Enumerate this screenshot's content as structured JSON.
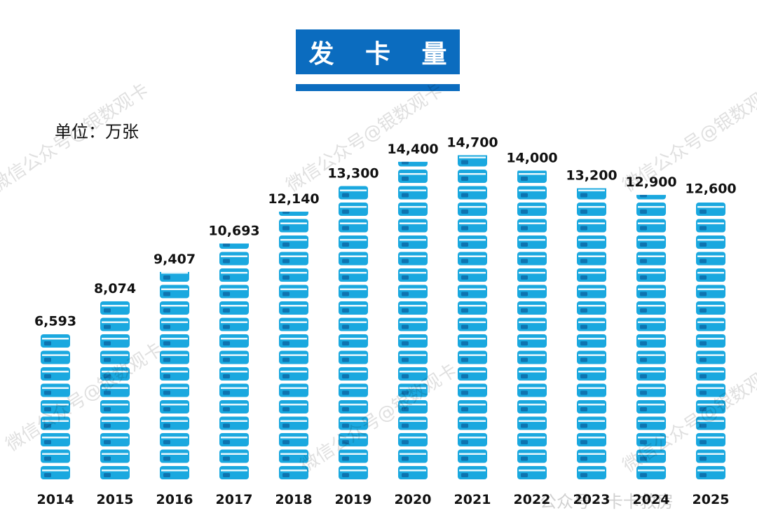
{
  "title": "发 卡 量",
  "unit_label": "单位：万张",
  "watermark": "微信公众号@银数观卡",
  "watermark_footer": "公众号 · 卡卡救房",
  "colors": {
    "title_bg": "#0b6cbf",
    "bar": "#1aa8df",
    "stripe": "#ffffff",
    "chip": "#0e74b0",
    "text": "#111111"
  },
  "chart_data": {
    "type": "bar",
    "title": "发 卡 量",
    "ylabel": "单位：万张",
    "xlabel": "",
    "categories": [
      "2014",
      "2015",
      "2016",
      "2017",
      "2018",
      "2019",
      "2020",
      "2021",
      "2022",
      "2023",
      "2024",
      "2025"
    ],
    "values": [
      6593,
      8074,
      9407,
      10693,
      12140,
      13300,
      14400,
      14700,
      14000,
      13200,
      12900,
      12600
    ],
    "value_labels": [
      "6,593",
      "8,074",
      "9,407",
      "10,693",
      "12,140",
      "13,300",
      "14,400",
      "14,700",
      "14,000",
      "13,200",
      "12,900",
      "12,600"
    ],
    "grid": false,
    "legend": "none"
  }
}
